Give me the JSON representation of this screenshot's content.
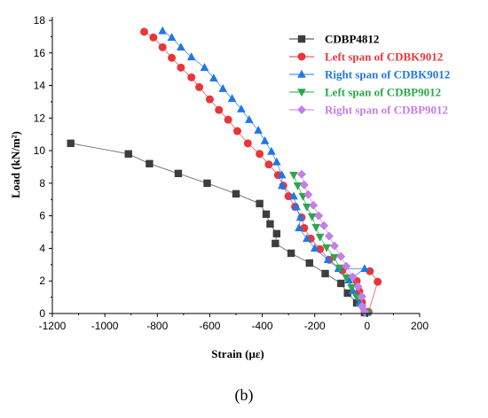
{
  "chart_data": {
    "type": "line",
    "xlabel": "Strain  (με)",
    "ylabel": "Load  (kN/m²)",
    "xlim": [
      -1200,
      200
    ],
    "ylim": [
      0,
      18
    ],
    "xticks": [
      -1200,
      -1000,
      -800,
      -600,
      -400,
      -200,
      0,
      200
    ],
    "yticks": [
      0,
      2,
      4,
      6,
      8,
      10,
      12,
      14,
      16,
      18
    ],
    "legend_position": "top-right",
    "grid": false,
    "series": [
      {
        "name": "CDBP4812",
        "marker": "square",
        "color": "#3d3d3d",
        "points": [
          [
            -1130,
            10.45
          ],
          [
            -910,
            9.8
          ],
          [
            -830,
            9.2
          ],
          [
            -720,
            8.6
          ],
          [
            -610,
            8.0
          ],
          [
            -500,
            7.35
          ],
          [
            -410,
            6.75
          ],
          [
            -385,
            6.1
          ],
          [
            -370,
            5.5
          ],
          [
            -345,
            4.9
          ],
          [
            -350,
            4.3
          ],
          [
            -290,
            3.7
          ],
          [
            -220,
            3.1
          ],
          [
            -160,
            2.45
          ],
          [
            -100,
            1.85
          ],
          [
            -75,
            1.25
          ],
          [
            -40,
            0.65
          ],
          [
            -10,
            0.05
          ]
        ]
      },
      {
        "name": "Left span of CDBK9012",
        "marker": "circle",
        "color": "#e8363b",
        "points": [
          [
            -850,
            17.3
          ],
          [
            -815,
            16.95
          ],
          [
            -780,
            16.35
          ],
          [
            -745,
            15.7
          ],
          [
            -710,
            15.1
          ],
          [
            -670,
            14.5
          ],
          [
            -640,
            13.9
          ],
          [
            -600,
            13.15
          ],
          [
            -565,
            12.5
          ],
          [
            -530,
            11.9
          ],
          [
            -495,
            11.2
          ],
          [
            -455,
            10.45
          ],
          [
            -410,
            9.8
          ],
          [
            -375,
            9.15
          ],
          [
            -340,
            8.5
          ],
          [
            -320,
            7.85
          ],
          [
            -300,
            7.2
          ],
          [
            -275,
            6.55
          ],
          [
            -250,
            5.9
          ],
          [
            -240,
            5.25
          ],
          [
            -215,
            4.6
          ],
          [
            -180,
            3.95
          ],
          [
            -145,
            3.3
          ],
          [
            -95,
            2.65
          ],
          [
            -40,
            2.0
          ],
          [
            -30,
            1.35
          ],
          [
            -20,
            0.7
          ],
          [
            5,
            0.1
          ],
          [
            40,
            1.95
          ],
          [
            10,
            2.6
          ]
        ]
      },
      {
        "name": "Right span of CDBK9012",
        "marker": "triangle-up",
        "color": "#1f77e8",
        "points": [
          [
            -780,
            17.35
          ],
          [
            -745,
            16.95
          ],
          [
            -710,
            16.35
          ],
          [
            -670,
            15.75
          ],
          [
            -620,
            15.1
          ],
          [
            -585,
            14.45
          ],
          [
            -550,
            13.8
          ],
          [
            -515,
            13.2
          ],
          [
            -480,
            12.55
          ],
          [
            -450,
            11.9
          ],
          [
            -415,
            11.25
          ],
          [
            -390,
            10.6
          ],
          [
            -365,
            9.95
          ],
          [
            -345,
            9.3
          ],
          [
            -325,
            8.5
          ],
          [
            -325,
            7.85
          ],
          [
            -280,
            7.2
          ],
          [
            -270,
            6.55
          ],
          [
            -255,
            5.9
          ],
          [
            -260,
            5.25
          ],
          [
            -230,
            4.6
          ],
          [
            -200,
            4.0
          ],
          [
            -150,
            3.3
          ],
          [
            -110,
            2.75
          ],
          [
            -10,
            2.75
          ],
          [
            -70,
            2.05
          ],
          [
            -55,
            1.4
          ],
          [
            -30,
            0.65
          ],
          [
            0,
            0.05
          ]
        ]
      },
      {
        "name": "Left span of CDBP9012",
        "marker": "triangle-down",
        "color": "#2aa84a",
        "points": [
          [
            -280,
            8.5
          ],
          [
            -265,
            7.85
          ],
          [
            -245,
            7.2
          ],
          [
            -230,
            6.55
          ],
          [
            -210,
            5.95
          ],
          [
            -195,
            5.3
          ],
          [
            -180,
            4.7
          ],
          [
            -155,
            4.05
          ],
          [
            -125,
            3.45
          ],
          [
            -105,
            2.8
          ],
          [
            -80,
            2.2
          ],
          [
            -60,
            1.6
          ],
          [
            -40,
            1.0
          ],
          [
            -20,
            0.35
          ],
          [
            0,
            0.05
          ]
        ]
      },
      {
        "name": "Right span of CDBP9012",
        "marker": "diamond",
        "color": "#c47ee8",
        "points": [
          [
            -250,
            8.55
          ],
          [
            -240,
            7.9
          ],
          [
            -225,
            7.3
          ],
          [
            -205,
            6.65
          ],
          [
            -185,
            6.0
          ],
          [
            -165,
            5.4
          ],
          [
            -145,
            4.75
          ],
          [
            -125,
            4.15
          ],
          [
            -100,
            3.5
          ],
          [
            -80,
            2.9
          ],
          [
            -55,
            2.25
          ],
          [
            -35,
            1.65
          ],
          [
            -20,
            1.05
          ],
          [
            -20,
            0.45
          ],
          [
            -10,
            0.1
          ]
        ]
      }
    ]
  },
  "caption": "(b)"
}
